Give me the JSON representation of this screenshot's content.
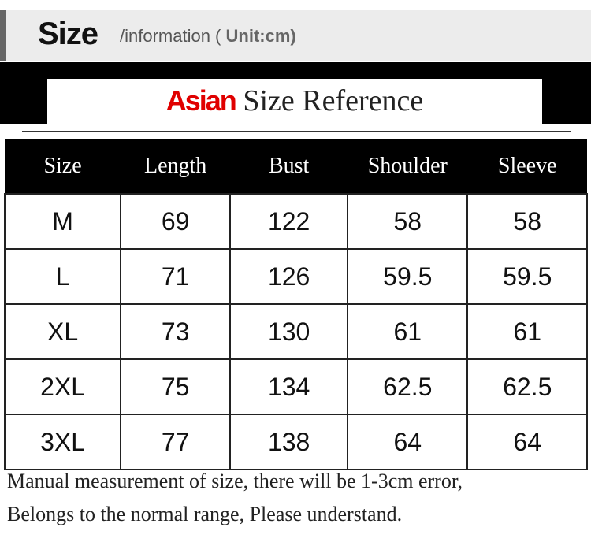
{
  "header": {
    "title": "Size",
    "subtitle": "/information (",
    "unit": "Unit:cm)"
  },
  "banner": {
    "highlight": "Asian",
    "title": "Size Reference",
    "highlight_color": "#e00000"
  },
  "table": {
    "columns": [
      "Size",
      "Length",
      "Bust",
      "Shoulder",
      "Sleeve"
    ],
    "rows": [
      [
        "M",
        "69",
        "122",
        "58",
        "58"
      ],
      [
        "L",
        "71",
        "126",
        "59.5",
        "59.5"
      ],
      [
        "XL",
        "73",
        "130",
        "61",
        "61"
      ],
      [
        "2XL",
        "75",
        "134",
        "62.5",
        "62.5"
      ],
      [
        "3XL",
        "77",
        "138",
        "64",
        "64"
      ]
    ]
  },
  "footer": {
    "line1": "Manual measurement of size, there will be 1-3cm error,",
    "line2": "Belongs to the normal range, Please understand."
  }
}
